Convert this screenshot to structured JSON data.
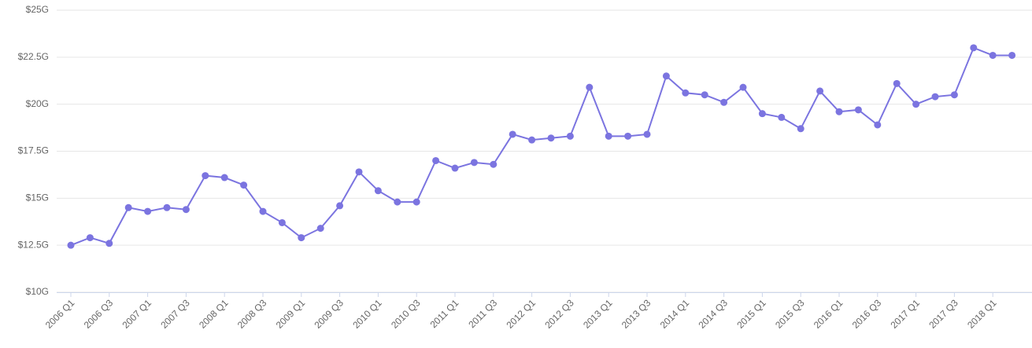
{
  "chart_data": {
    "type": "line",
    "categories": [
      "2006 Q1",
      null,
      "2006 Q3",
      null,
      "2007 Q1",
      null,
      "2007 Q3",
      null,
      "2008 Q1",
      null,
      "2008 Q3",
      null,
      "2009 Q1",
      null,
      "2009 Q3",
      null,
      "2010 Q1",
      null,
      "2010 Q3",
      null,
      "2011 Q1",
      null,
      "2011 Q3",
      null,
      "2012 Q1",
      null,
      "2012 Q3",
      null,
      "2013 Q1",
      null,
      "2013 Q3",
      null,
      "2014 Q1",
      null,
      "2014 Q3",
      null,
      "2015 Q1",
      null,
      "2015 Q3",
      null,
      "2016 Q1",
      null,
      "2016 Q3",
      null,
      "2017 Q1",
      null,
      "2017 Q3",
      null,
      "2018 Q1",
      null
    ],
    "values": [
      12.5,
      12.9,
      12.6,
      14.5,
      14.3,
      14.5,
      14.4,
      16.2,
      16.1,
      15.7,
      14.3,
      13.7,
      12.9,
      13.4,
      14.6,
      16.4,
      15.4,
      14.8,
      14.8,
      17.0,
      16.6,
      16.9,
      16.8,
      18.4,
      18.1,
      18.2,
      18.3,
      20.9,
      18.3,
      18.3,
      18.4,
      21.5,
      20.6,
      20.5,
      20.1,
      20.9,
      19.5,
      19.3,
      18.7,
      20.7,
      19.6,
      19.7,
      18.9,
      21.1,
      20.0,
      20.4,
      20.5,
      23.0,
      22.6,
      22.6
    ],
    "color": "#7b74e0",
    "ylim": [
      10,
      25
    ],
    "yticks": [
      {
        "value": 10,
        "label": "$10G"
      },
      {
        "value": 12.5,
        "label": "$12.5G"
      },
      {
        "value": 15,
        "label": "$15G"
      },
      {
        "value": 17.5,
        "label": "$17.5G"
      },
      {
        "value": 20,
        "label": "$20G"
      },
      {
        "value": 22.5,
        "label": "$22.5G"
      },
      {
        "value": 25,
        "label": "$25G"
      }
    ],
    "grid": true
  }
}
